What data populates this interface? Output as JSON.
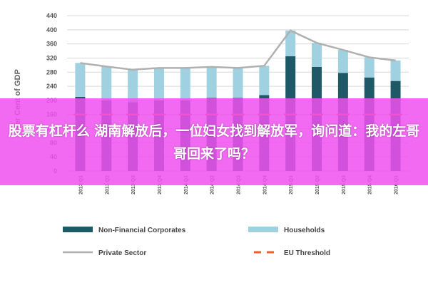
{
  "chart_data": {
    "type": "bar",
    "stacked": true,
    "categories": [
      "2013 Q1",
      "2013 Q2",
      "2013 Q3",
      "2013 Q4",
      "2014 Q1",
      "2014 Q2",
      "2014 Q3",
      "2014 Q4",
      "2015 Q1",
      "2015 Q2",
      "2015 Q3",
      "2015 Q4",
      "2016 Q1"
    ],
    "series": [
      {
        "name": "Non-Financial Corporates",
        "type": "bar",
        "color": "#1f5866",
        "values": [
          210,
          200,
          195,
          200,
          200,
          207,
          207,
          215,
          325,
          295,
          278,
          265,
          255
        ]
      },
      {
        "name": "Households",
        "type": "bar",
        "color": "#9fd1e0",
        "values": [
          96,
          96,
          92,
          92,
          92,
          88,
          85,
          83,
          73,
          68,
          65,
          57,
          58
        ]
      },
      {
        "name": "Private Sector",
        "type": "line",
        "color": "#b0b0b0",
        "values": [
          306,
          296,
          287,
          292,
          292,
          295,
          292,
          298,
          398,
          363,
          343,
          322,
          313
        ]
      },
      {
        "name": "EU Threshold",
        "type": "line",
        "dash": true,
        "color": "#e8622a",
        "values": [
          160,
          160,
          160,
          160,
          160,
          160,
          160,
          160,
          160,
          160,
          160,
          160,
          160
        ]
      }
    ],
    "yticks": [
      "0",
      "40",
      "80",
      "120",
      "160",
      "200",
      "240",
      "280",
      "320",
      "360",
      "400",
      "440"
    ],
    "ylim": [
      0,
      440
    ],
    "ylabel": "Per Cent of GDP",
    "xlabel": "",
    "grid": true,
    "legend_position": "bottom"
  },
  "overlay": {
    "text": "股票有杠杆么 湖南解放后，一位妇女找到解放军，询问道：我的左哥哥回来了吗？",
    "color": "#f050f0"
  }
}
